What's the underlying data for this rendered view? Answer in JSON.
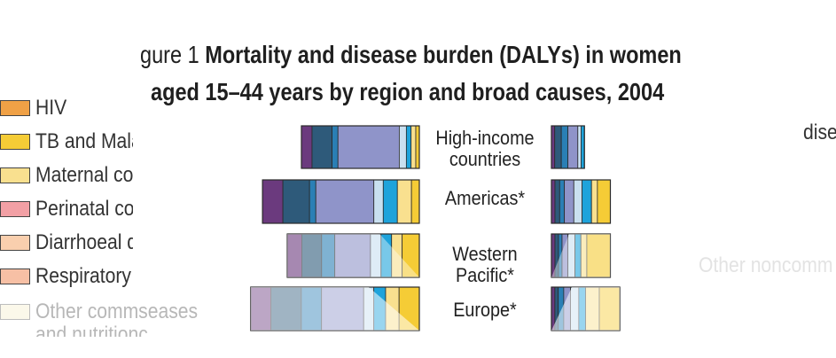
{
  "title": {
    "line1_prefix": "gure 1 ",
    "line1_bold": "Mortality and disease burden (DALYs) in women",
    "line2": "aged 15–44 years by region and broad causes, 2004"
  },
  "legend": [
    {
      "label": "HIV",
      "color": "#f0a146"
    },
    {
      "label": "TB and Mala",
      "color": "#f5cc36"
    },
    {
      "label": "Maternal co",
      "color": "#f9e08f"
    },
    {
      "label": "Perinatal co",
      "color": "#f2a0a5"
    },
    {
      "label": "Diarrhoeal d",
      "color": "#f9cfae"
    },
    {
      "label": "Respiratory",
      "color": "#f7c0a5"
    },
    {
      "label": "Other commseases",
      "color": "#f4ecc6",
      "sub": "and nutritionc"
    }
  ],
  "side_texts": {
    "top_right": "dise",
    "middle_right": "Other noncomm"
  },
  "chart_data": {
    "type": "bar",
    "orientation": "horizontal",
    "stacked": true,
    "note": "Two stacked horizontal bars per region: deaths (left, drawn leftward from the centre) and DALYs (right, drawn rightward). Cause shares are relative, read from segment widths.",
    "categories": [
      "High-income countries",
      "Americas*",
      "Western Pacific*",
      "Europe*"
    ],
    "segment_colors": [
      "#6b3a7e",
      "#2e5a7a",
      "#2a7fb5",
      "#8f94c9",
      "#c9e0f0",
      "#1ea3db",
      "#f9e08f",
      "#f5cc36"
    ],
    "mortality": [
      {
        "total": 100,
        "shares": [
          9,
          17,
          5,
          52,
          6,
          4,
          4,
          3
        ]
      },
      {
        "total": 133,
        "shares": [
          13,
          17,
          4,
          37,
          6,
          9,
          9,
          5
        ]
      },
      {
        "total": 112,
        "shares": [
          11,
          15,
          10,
          27,
          8,
          8,
          8,
          13
        ]
      },
      {
        "total": 143,
        "shares": [
          12,
          18,
          12,
          25,
          6,
          7,
          8,
          12
        ]
      }
    ],
    "dalys": [
      {
        "total": 28,
        "shares": [
          10,
          20,
          20,
          30,
          10,
          10,
          0,
          0
        ]
      },
      {
        "total": 50,
        "shares": [
          6,
          8,
          8,
          16,
          14,
          16,
          10,
          22
        ]
      },
      {
        "total": 50,
        "shares": [
          6,
          6,
          6,
          10,
          12,
          10,
          10,
          40
        ]
      },
      {
        "total": 58,
        "shares": [
          5,
          5,
          8,
          10,
          12,
          10,
          20,
          30
        ]
      }
    ]
  }
}
